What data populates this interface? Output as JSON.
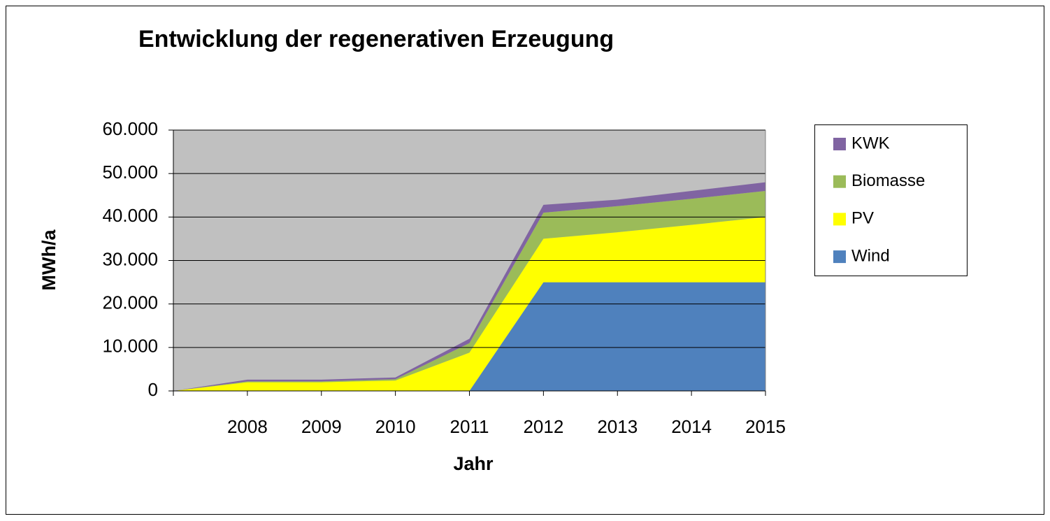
{
  "chart_data": {
    "type": "stacked_area",
    "title": "Entwicklung der regenerativen Erzeugung",
    "x_label": "Jahr",
    "y_label": "MWh/a",
    "categories": [
      null,
      "2008",
      "2009",
      "2010",
      "2011",
      "2012",
      "2013",
      "2014",
      "2015"
    ],
    "series": [
      {
        "name": "Wind",
        "color": "#4f81bd",
        "values": [
          0,
          0,
          0,
          0,
          0,
          25000,
          25000,
          25000,
          25000
        ]
      },
      {
        "name": "PV",
        "color": "#ffff00",
        "values": [
          0,
          2000,
          2000,
          2400,
          8800,
          10000,
          11500,
          13200,
          15000
        ]
      },
      {
        "name": "Biomasse",
        "color": "#9bbb59",
        "values": [
          0,
          200,
          200,
          300,
          2200,
          6000,
          6000,
          6000,
          6000
        ]
      },
      {
        "name": "KWK",
        "color": "#8064a2",
        "values": [
          0,
          400,
          400,
          400,
          1000,
          1800,
          1500,
          1800,
          2000
        ]
      }
    ],
    "ylim": [
      0,
      60000
    ],
    "yticks": [
      0,
      {
        "value": 10000,
        "label": "10.000"
      },
      {
        "value": 20000,
        "label": "20.000"
      },
      {
        "value": 30000,
        "label": "30.000"
      },
      {
        "value": 40000,
        "label": "40.000"
      },
      {
        "value": 50000,
        "label": "50.000"
      },
      {
        "value": 60000,
        "label": "60.000"
      }
    ],
    "grid": true,
    "legend": "right",
    "plot_background": "#c0c0c0"
  }
}
